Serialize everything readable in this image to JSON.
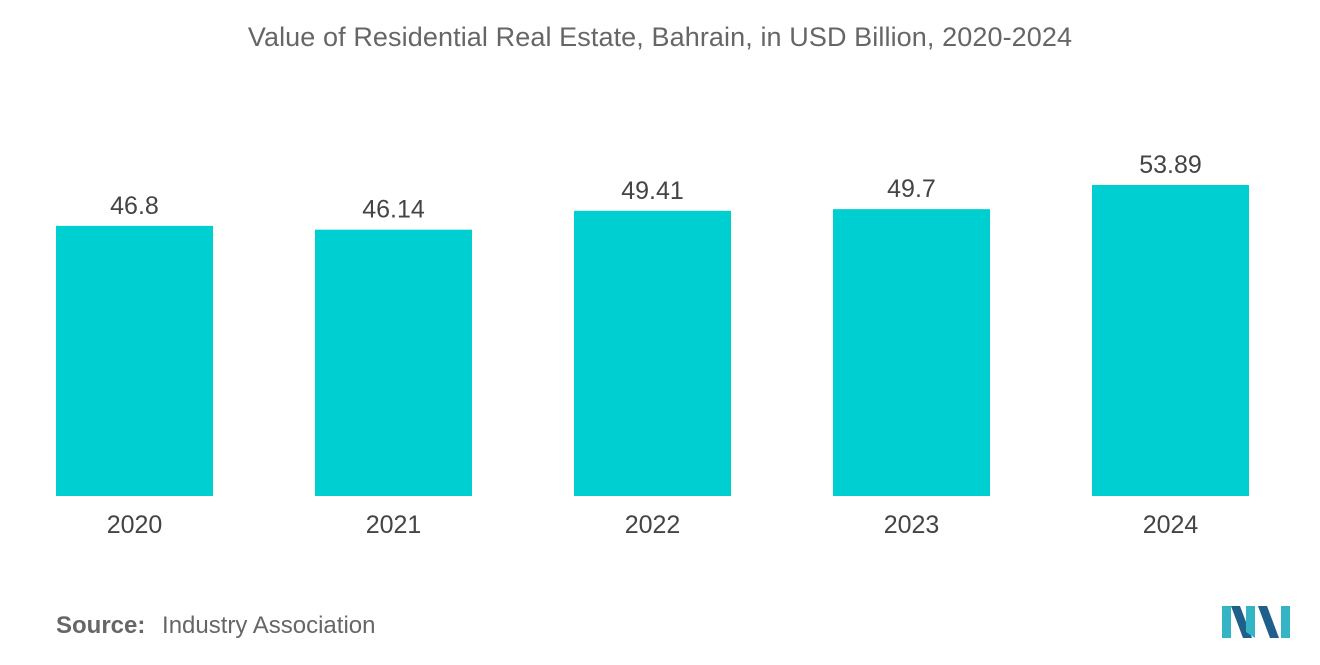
{
  "chart_data": {
    "type": "bar",
    "title": "Value of Residential Real Estate, Bahrain, in USD Billion, 2020-2024",
    "categories": [
      "2020",
      "2021",
      "2022",
      "2023",
      "2024"
    ],
    "values": [
      46.8,
      46.14,
      49.41,
      49.7,
      53.89
    ],
    "value_labels": [
      "46.8",
      "46.14",
      "49.41",
      "49.7",
      "53.89"
    ],
    "xlabel": "",
    "ylabel": "",
    "ylim": [
      0,
      57
    ],
    "grid": false,
    "legend": "none",
    "bar_color": "#00cfd1"
  },
  "source": {
    "key": "Source:",
    "value": "Industry Association"
  },
  "colors": {
    "logo_dark": "#1f5f8b",
    "logo_light": "#34b5c6"
  }
}
